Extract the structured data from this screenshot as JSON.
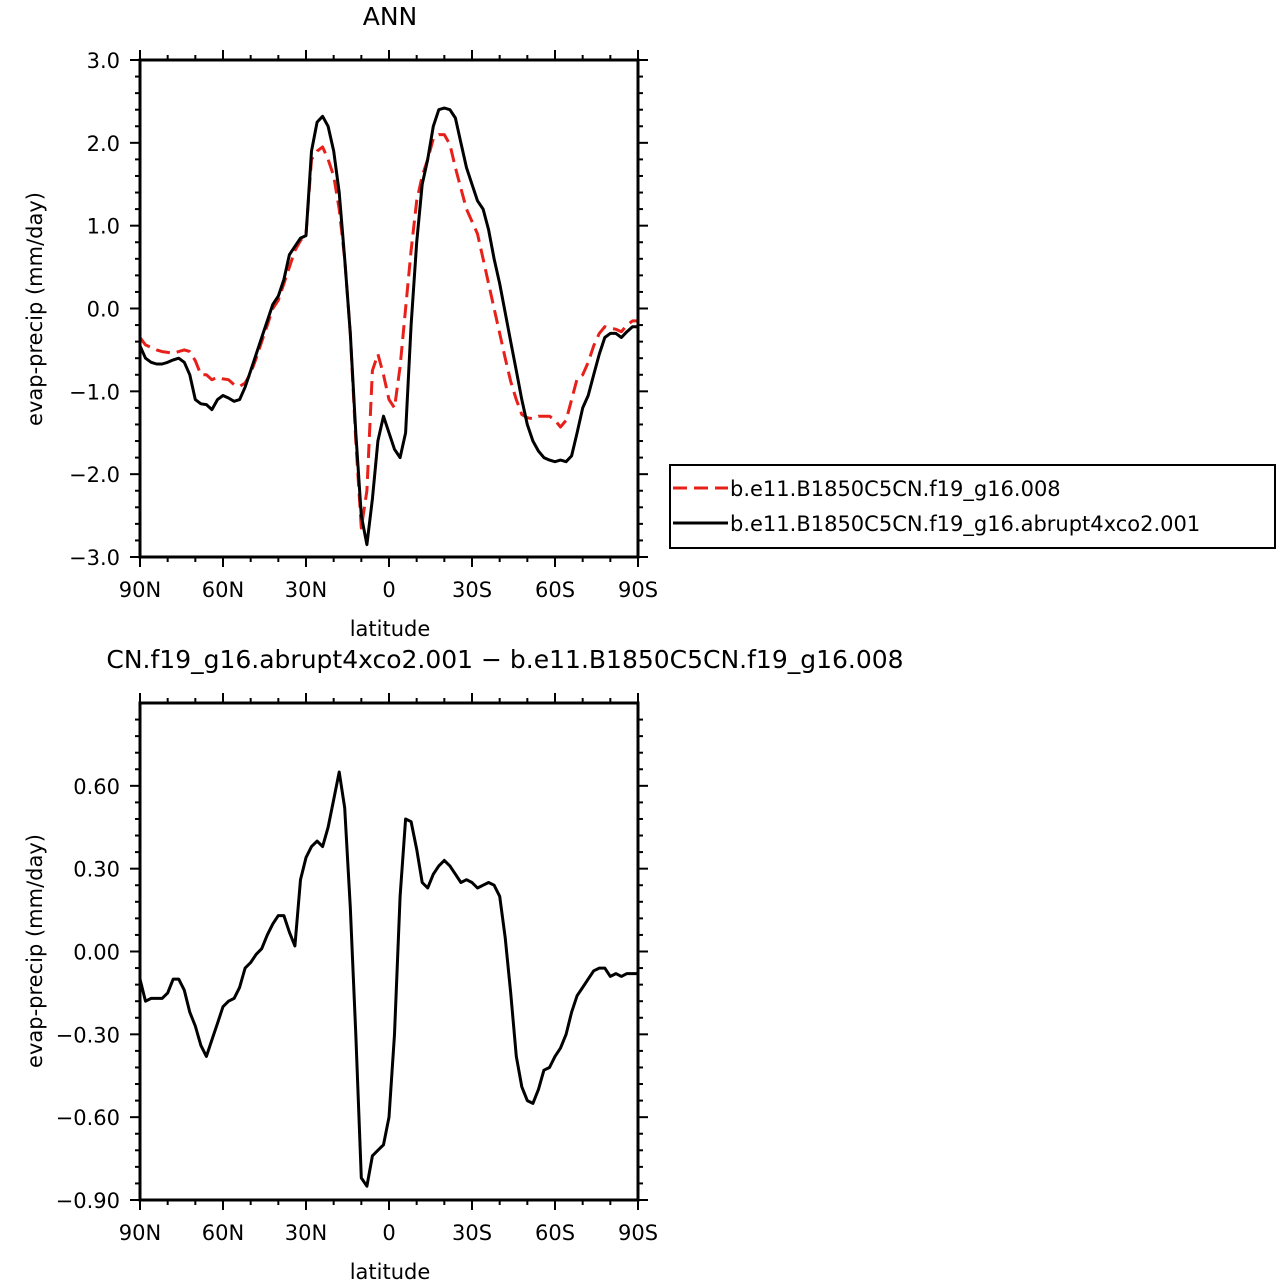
{
  "chart_data": [
    {
      "type": "line",
      "title": "ANN",
      "xlabel": "latitude",
      "ylabel": "evap-precip (mm/day)",
      "xlim": [
        90,
        -90
      ],
      "ylim": [
        -3.0,
        3.0
      ],
      "xticks": [
        90,
        60,
        30,
        0,
        -30,
        -60,
        -90
      ],
      "xtick_labels": [
        "90N",
        "60N",
        "30N",
        "0",
        "30S",
        "60S",
        "90S"
      ],
      "yticks": [
        -3,
        -2,
        -1,
        0,
        1,
        2,
        3
      ],
      "ytick_labels": [
        "−3.0",
        "−2.0",
        "−1.0",
        "0.0",
        "1.0",
        "2.0",
        "3.0"
      ],
      "grid": false,
      "legend_position": "right",
      "series": [
        {
          "name": "b.e11.B1850C5CN.f19_g16.008",
          "color": "#e8201a",
          "dash": "dashed",
          "x": [
            90,
            88,
            86,
            84,
            82,
            80,
            78,
            76,
            74,
            72,
            70,
            68,
            66,
            64,
            62,
            60,
            58,
            56,
            54,
            52,
            50,
            48,
            46,
            44,
            42,
            40,
            38,
            36,
            34,
            32,
            30,
            28,
            26,
            24,
            22,
            20,
            18,
            16,
            14,
            12,
            10,
            8,
            6,
            4,
            2,
            0,
            -2,
            -4,
            -6,
            -8,
            -10,
            -12,
            -14,
            -16,
            -18,
            -20,
            -22,
            -24,
            -26,
            -28,
            -30,
            -32,
            -34,
            -36,
            -38,
            -40,
            -42,
            -44,
            -46,
            -48,
            -50,
            -52,
            -54,
            -56,
            -58,
            -60,
            -62,
            -64,
            -66,
            -68,
            -70,
            -72,
            -74,
            -76,
            -78,
            -80,
            -82,
            -84,
            -86,
            -88,
            -90
          ],
          "y": [
            -0.35,
            -0.44,
            -0.47,
            -0.5,
            -0.52,
            -0.53,
            -0.54,
            -0.52,
            -0.5,
            -0.52,
            -0.63,
            -0.8,
            -0.8,
            -0.86,
            -0.83,
            -0.85,
            -0.86,
            -0.92,
            -0.94,
            -0.9,
            -0.78,
            -0.6,
            -0.4,
            -0.2,
            0.0,
            0.1,
            0.3,
            0.5,
            0.7,
            0.82,
            0.9,
            1.8,
            1.9,
            1.95,
            1.8,
            1.6,
            1.2,
            0.6,
            -0.3,
            -1.6,
            -2.65,
            -2.2,
            -0.75,
            -0.55,
            -0.8,
            -1.1,
            -1.2,
            -0.7,
            0.0,
            0.7,
            1.3,
            1.6,
            1.8,
            2.05,
            2.1,
            2.1,
            1.98,
            1.7,
            1.45,
            1.2,
            1.05,
            0.9,
            0.6,
            0.3,
            0.0,
            -0.3,
            -0.6,
            -0.88,
            -1.1,
            -1.28,
            -1.32,
            -1.33,
            -1.3,
            -1.3,
            -1.3,
            -1.35,
            -1.43,
            -1.35,
            -1.1,
            -0.85,
            -0.8,
            -0.65,
            -0.45,
            -0.3,
            -0.22,
            -0.24,
            -0.25,
            -0.28,
            -0.2,
            -0.15,
            -0.15
          ]
        },
        {
          "name": "b.e11.B1850C5CN.f19_g16.abrupt4xco2.001",
          "color": "#000000",
          "dash": "solid",
          "x": [
            90,
            88,
            86,
            84,
            82,
            80,
            78,
            76,
            74,
            72,
            70,
            68,
            66,
            64,
            62,
            60,
            58,
            56,
            54,
            52,
            50,
            48,
            46,
            44,
            42,
            40,
            38,
            36,
            34,
            32,
            30,
            28,
            26,
            24,
            22,
            20,
            18,
            16,
            14,
            12,
            10,
            8,
            6,
            4,
            2,
            0,
            -2,
            -4,
            -6,
            -8,
            -10,
            -12,
            -14,
            -16,
            -18,
            -20,
            -22,
            -24,
            -26,
            -28,
            -30,
            -32,
            -34,
            -36,
            -38,
            -40,
            -42,
            -44,
            -46,
            -48,
            -50,
            -52,
            -54,
            -56,
            -58,
            -60,
            -62,
            -64,
            -66,
            -68,
            -70,
            -72,
            -74,
            -76,
            -78,
            -80,
            -82,
            -84,
            -86,
            -88,
            -90
          ],
          "y": [
            -0.45,
            -0.6,
            -0.65,
            -0.67,
            -0.67,
            -0.65,
            -0.62,
            -0.6,
            -0.65,
            -0.8,
            -1.1,
            -1.15,
            -1.16,
            -1.22,
            -1.1,
            -1.05,
            -1.08,
            -1.12,
            -1.1,
            -0.95,
            -0.75,
            -0.55,
            -0.35,
            -0.15,
            0.05,
            0.15,
            0.35,
            0.65,
            0.75,
            0.85,
            0.88,
            1.9,
            2.25,
            2.32,
            2.2,
            1.9,
            1.4,
            0.6,
            -0.3,
            -1.5,
            -2.5,
            -2.85,
            -2.3,
            -1.6,
            -1.3,
            -1.5,
            -1.7,
            -1.8,
            -1.5,
            -0.2,
            0.8,
            1.5,
            1.8,
            2.2,
            2.4,
            2.42,
            2.4,
            2.3,
            2.0,
            1.7,
            1.5,
            1.3,
            1.2,
            0.95,
            0.6,
            0.3,
            -0.05,
            -0.4,
            -0.75,
            -1.1,
            -1.4,
            -1.6,
            -1.72,
            -1.8,
            -1.83,
            -1.85,
            -1.83,
            -1.85,
            -1.78,
            -1.5,
            -1.2,
            -1.05,
            -0.8,
            -0.55,
            -0.35,
            -0.3,
            -0.3,
            -0.35,
            -0.28,
            -0.22,
            -0.22
          ]
        }
      ]
    },
    {
      "type": "line",
      "title": "CN.f19_g16.abrupt4xco2.001 − b.e11.B1850C5CN.f19_g16.008",
      "xlabel": "latitude",
      "ylabel": "evap-precip (mm/day)",
      "xlim": [
        90,
        -90
      ],
      "ylim": [
        -0.9,
        0.9
      ],
      "xticks": [
        90,
        60,
        30,
        0,
        -30,
        -60,
        -90
      ],
      "xtick_labels": [
        "90N",
        "60N",
        "30N",
        "0",
        "30S",
        "60S",
        "90S"
      ],
      "yticks": [
        -0.9,
        -0.6,
        -0.3,
        0,
        0.3,
        0.6
      ],
      "ytick_labels": [
        "−0.90",
        "−0.60",
        "−0.30",
        "0.00",
        "0.30",
        "0.60"
      ],
      "grid": false,
      "series": [
        {
          "color": "#000000",
          "dash": "solid",
          "x": [
            90,
            88,
            86,
            84,
            82,
            80,
            78,
            76,
            74,
            72,
            70,
            68,
            66,
            64,
            62,
            60,
            58,
            56,
            54,
            52,
            50,
            48,
            46,
            44,
            42,
            40,
            38,
            36,
            34,
            32,
            30,
            28,
            26,
            24,
            22,
            20,
            18,
            16,
            14,
            12,
            10,
            8,
            6,
            4,
            2,
            0,
            -2,
            -4,
            -6,
            -8,
            -10,
            -12,
            -14,
            -16,
            -18,
            -20,
            -22,
            -24,
            -26,
            -28,
            -30,
            -32,
            -34,
            -36,
            -38,
            -40,
            -42,
            -44,
            -46,
            -48,
            -50,
            -52,
            -54,
            -56,
            -58,
            -60,
            -62,
            -64,
            -66,
            -68,
            -70,
            -72,
            -74,
            -76,
            -78,
            -80,
            -82,
            -84,
            -86,
            -88,
            -90
          ],
          "y": [
            -0.1,
            -0.18,
            -0.17,
            -0.17,
            -0.17,
            -0.15,
            -0.1,
            -0.1,
            -0.14,
            -0.22,
            -0.27,
            -0.34,
            -0.38,
            -0.32,
            -0.26,
            -0.2,
            -0.18,
            -0.17,
            -0.13,
            -0.06,
            -0.04,
            -0.01,
            0.01,
            0.06,
            0.1,
            0.13,
            0.13,
            0.07,
            0.02,
            0.26,
            0.34,
            0.38,
            0.4,
            0.38,
            0.45,
            0.55,
            0.65,
            0.52,
            0.16,
            -0.3,
            -0.82,
            -0.85,
            -0.74,
            -0.72,
            -0.7,
            -0.6,
            -0.3,
            0.2,
            0.48,
            0.47,
            0.37,
            0.25,
            0.23,
            0.28,
            0.31,
            0.33,
            0.31,
            0.28,
            0.25,
            0.26,
            0.25,
            0.23,
            0.24,
            0.25,
            0.24,
            0.2,
            0.05,
            -0.15,
            -0.38,
            -0.49,
            -0.54,
            -0.55,
            -0.5,
            -0.43,
            -0.42,
            -0.38,
            -0.35,
            -0.3,
            -0.22,
            -0.16,
            -0.13,
            -0.1,
            -0.07,
            -0.06,
            -0.06,
            -0.09,
            -0.08,
            -0.09,
            -0.08,
            -0.08,
            -0.08
          ]
        }
      ]
    }
  ]
}
